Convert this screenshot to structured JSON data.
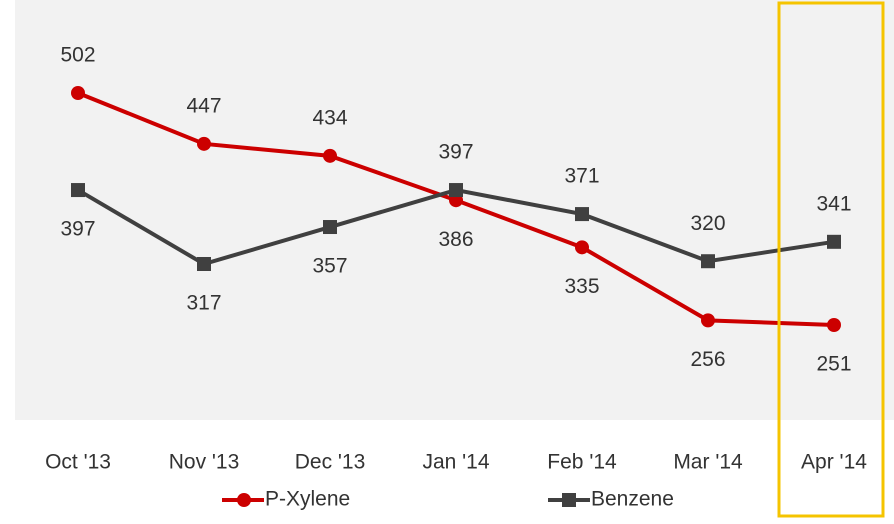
{
  "chart_data": {
    "type": "line",
    "categories": [
      "Oct '13",
      "Nov '13",
      "Dec '13",
      "Jan '14",
      "Feb '14",
      "Mar '14",
      "Apr '14"
    ],
    "series": [
      {
        "name": "P-Xylene",
        "color": "#cc0000",
        "values": [
          502,
          447,
          434,
          386,
          335,
          256,
          251
        ]
      },
      {
        "name": "Benzene",
        "color": "#404040",
        "values": [
          397,
          317,
          357,
          397,
          371,
          320,
          341
        ]
      }
    ]
  }
}
